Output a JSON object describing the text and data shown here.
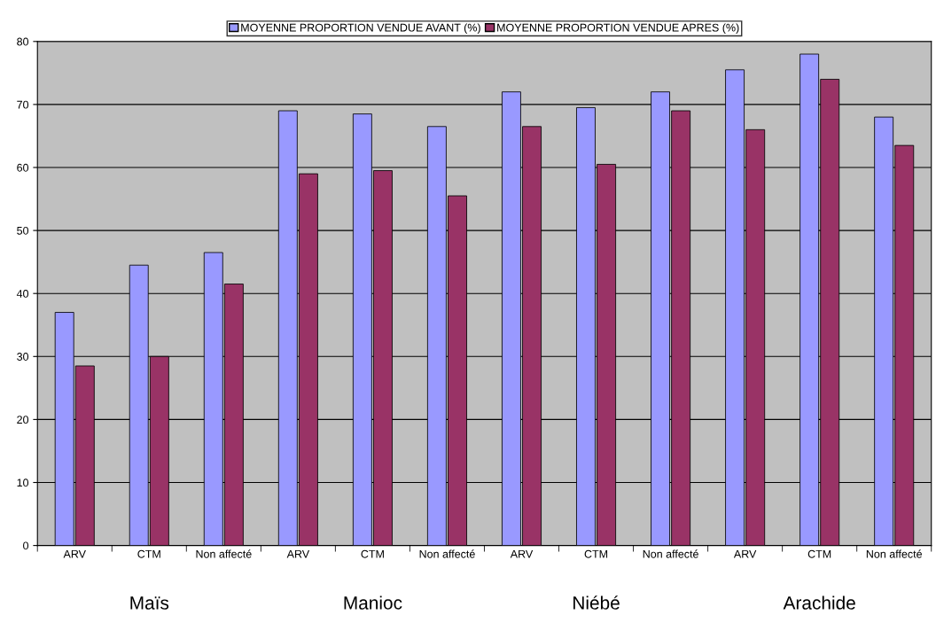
{
  "chart_data": {
    "type": "bar",
    "categories": [
      "ARV",
      "CTM",
      "Non affecté",
      "ARV",
      "CTM",
      "Non affecté",
      "ARV",
      "CTM",
      "Non affecté",
      "ARV",
      "CTM",
      "Non affecté"
    ],
    "series": [
      {
        "name": "MOYENNE PROPORTION VENDUE AVANT (%)",
        "color": "#9999ff",
        "values": [
          37,
          44.5,
          46.5,
          69,
          68.5,
          66.5,
          72,
          69.5,
          72,
          75.5,
          78,
          68
        ]
      },
      {
        "name": "MOYENNE PROPORTION VENDUE APRES (%)",
        "color": "#993366",
        "values": [
          28.5,
          30,
          41.5,
          59,
          59.5,
          55.5,
          66.5,
          60.5,
          69,
          66,
          74,
          63.5
        ]
      }
    ],
    "annotations": [
      "Maïs",
      "Manioc",
      "Niébé",
      "Arachide"
    ],
    "ylim": [
      0,
      80
    ],
    "yticks": [
      0,
      10,
      20,
      30,
      40,
      50,
      60,
      70,
      80
    ],
    "grid": "y",
    "legend": "top"
  }
}
